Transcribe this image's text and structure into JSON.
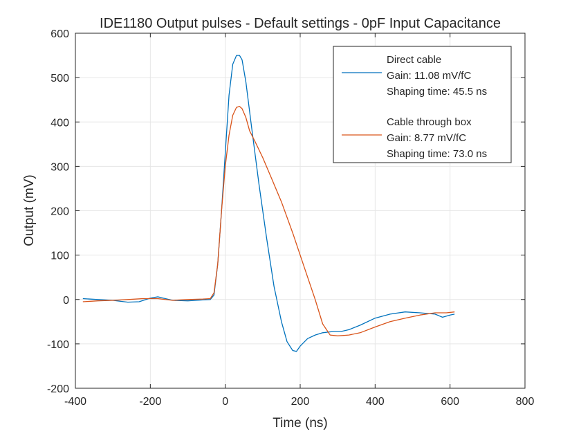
{
  "chart_data": {
    "type": "line",
    "title": "IDE1180 Output pulses - Default settings - 0pF Input Capacitance",
    "xlabel": "Time (ns)",
    "ylabel": "Output (mV)",
    "xlim": [
      -400,
      800
    ],
    "ylim": [
      -200,
      600
    ],
    "xticks": [
      -400,
      -200,
      0,
      200,
      400,
      600,
      800
    ],
    "yticks": [
      -200,
      -100,
      0,
      100,
      200,
      300,
      400,
      500,
      600
    ],
    "xtick_labels": [
      "-400",
      "-200",
      "0",
      "200",
      "400",
      "600",
      "800"
    ],
    "ytick_labels": [
      "-200",
      "-100",
      "0",
      "100",
      "200",
      "300",
      "400",
      "500",
      "600"
    ],
    "grid": true,
    "legend_position": "top-right",
    "series": [
      {
        "name": "Direct cable",
        "legend_lines": [
          "Direct cable",
          "Gain: 11.08 mV/fC",
          "Shaping time: 45.5 ns"
        ],
        "color": "#0072BD",
        "x": [
          -380,
          -340,
          -300,
          -260,
          -230,
          -200,
          -180,
          -160,
          -140,
          -100,
          -60,
          -40,
          -30,
          -20,
          -10,
          0,
          10,
          20,
          30,
          38,
          45,
          55,
          70,
          90,
          110,
          130,
          150,
          165,
          180,
          190,
          200,
          220,
          240,
          260,
          290,
          310,
          330,
          360,
          400,
          440,
          480,
          520,
          560,
          580,
          600,
          612
        ],
        "y": [
          2,
          0,
          -2,
          -6,
          -5,
          3,
          6,
          2,
          -2,
          -3,
          -1,
          0,
          10,
          80,
          200,
          330,
          460,
          530,
          550,
          550,
          540,
          490,
          390,
          260,
          140,
          30,
          -50,
          -95,
          -115,
          -117,
          -105,
          -88,
          -80,
          -75,
          -72,
          -72,
          -68,
          -58,
          -42,
          -33,
          -28,
          -30,
          -33,
          -40,
          -35,
          -33
        ]
      },
      {
        "name": "Cable through box",
        "legend_lines": [
          "Cable through box",
          "Gain: 8.77 mV/fC",
          "Shaping time: 73.0 ns"
        ],
        "color": "#D95319",
        "x": [
          -380,
          -340,
          -300,
          -260,
          -220,
          -180,
          -140,
          -100,
          -60,
          -40,
          -30,
          -20,
          -10,
          0,
          10,
          20,
          30,
          38,
          45,
          55,
          65,
          80,
          100,
          120,
          150,
          180,
          210,
          240,
          260,
          280,
          300,
          330,
          360,
          400,
          440,
          480,
          520,
          560,
          590,
          612
        ],
        "y": [
          -5,
          -3,
          -2,
          0,
          2,
          2,
          -2,
          0,
          1,
          2,
          15,
          80,
          200,
          300,
          370,
          415,
          433,
          435,
          430,
          410,
          380,
          355,
          320,
          280,
          220,
          150,
          75,
          0,
          -55,
          -80,
          -82,
          -80,
          -75,
          -62,
          -50,
          -42,
          -35,
          -30,
          -30,
          -28
        ]
      }
    ]
  }
}
